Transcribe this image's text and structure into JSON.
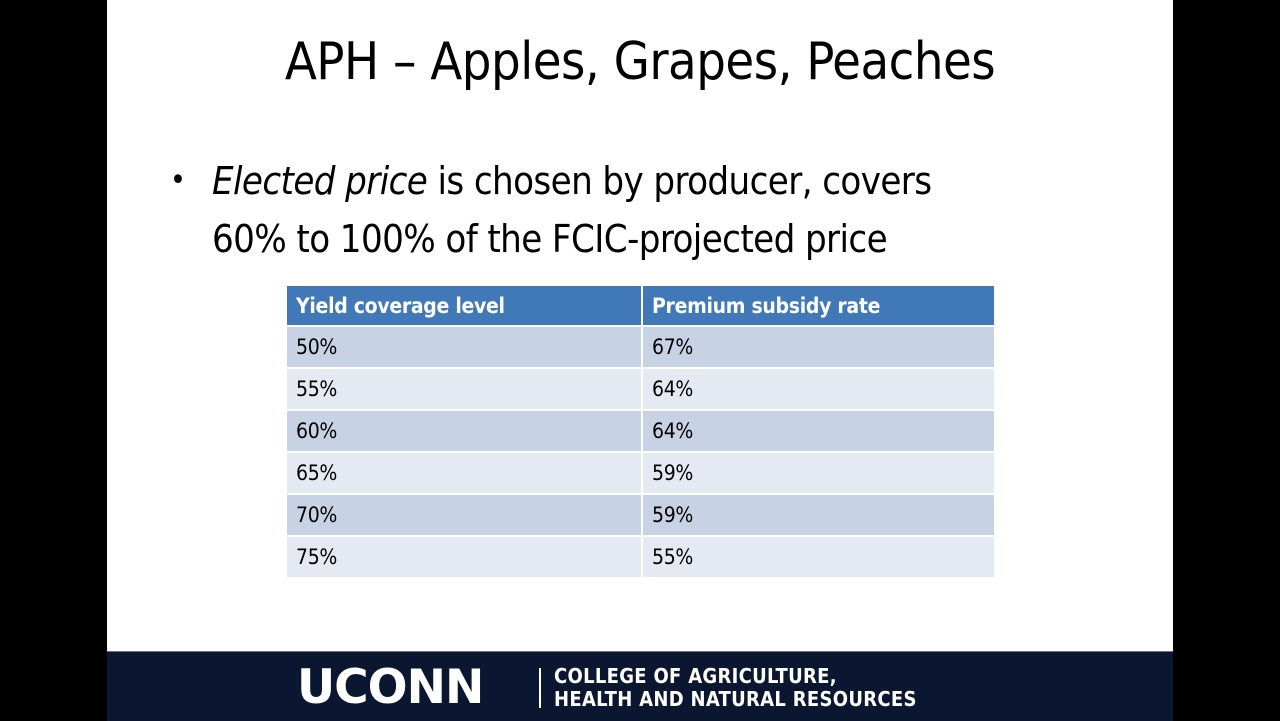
{
  "slide": {
    "title": "APH – Apples, Grapes, Peaches",
    "bullet": {
      "marker": "•",
      "italic_lead": "Elected price",
      "rest_line1": " is chosen by producer, covers",
      "line2": "60% to 100% of the FCIC-projected price"
    },
    "table": {
      "headers": [
        "Yield coverage level",
        "Premium subsidy rate"
      ],
      "rows": [
        [
          "50%",
          "67%"
        ],
        [
          "55%",
          "64%"
        ],
        [
          "60%",
          "64%"
        ],
        [
          "65%",
          "59%"
        ],
        [
          "70%",
          "59%"
        ],
        [
          "75%",
          "55%"
        ]
      ]
    },
    "footer": {
      "logo": "UCONN",
      "college_line1": "COLLEGE OF AGRICULTURE,",
      "college_line2": "HEALTH AND NATURAL RESOURCES"
    }
  },
  "colors": {
    "header_bg": "#4178b8",
    "row_odd": "#c8d2e5",
    "row_even": "#e5e9f2",
    "footer_bg": "#0b1730"
  }
}
